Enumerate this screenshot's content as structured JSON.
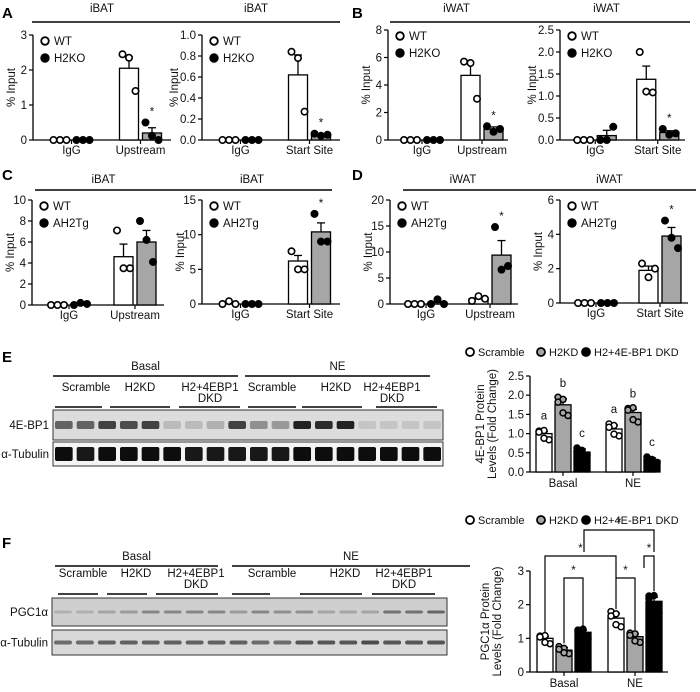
{
  "figure": {
    "panels": [
      "A",
      "B",
      "C",
      "D",
      "E",
      "F"
    ]
  },
  "chart_data": [
    {
      "id": "A1",
      "panel": "A",
      "type": "bar",
      "title": "iBAT",
      "ylabel": "% Input",
      "ylim": [
        0,
        3
      ],
      "yticks": [
        "0",
        "1",
        "2",
        "3"
      ],
      "categories": [
        "IgG",
        "Upstream"
      ],
      "legend": [
        "WT",
        "H2KO"
      ],
      "series": [
        {
          "name": "WT",
          "values": [
            0.0,
            2.05
          ],
          "sem": [
            0,
            0.32
          ],
          "points": [
            [
              0,
              0,
              0
            ],
            [
              2.45,
              2.35,
              1.4
            ]
          ]
        },
        {
          "name": "H2KO",
          "values": [
            0.0,
            0.2
          ],
          "sem": [
            0,
            0.15
          ],
          "points": [
            [
              0,
              0,
              0
            ],
            [
              0.5,
              0.12,
              0.0
            ]
          ]
        }
      ],
      "significance": [
        {
          "category": "Upstream",
          "series": "H2KO",
          "mark": "*"
        }
      ]
    },
    {
      "id": "A2",
      "panel": "A",
      "type": "bar",
      "title": "iBAT",
      "ylabel": "% Input",
      "ylim": [
        0,
        1.0
      ],
      "yticks": [
        "0.0",
        "0.2",
        "0.4",
        "0.6",
        "0.8",
        "1.0"
      ],
      "categories": [
        "IgG",
        "Start Site"
      ],
      "legend": [
        "WT",
        "H2KO"
      ],
      "series": [
        {
          "name": "WT",
          "values": [
            0.0,
            0.62
          ],
          "sem": [
            0,
            0.19
          ],
          "points": [
            [
              0,
              0,
              0
            ],
            [
              0.84,
              0.78,
              0.27
            ]
          ]
        },
        {
          "name": "H2KO",
          "values": [
            0.0,
            0.05
          ],
          "sem": [
            0,
            0.01
          ],
          "points": [
            [
              0,
              0,
              0
            ],
            [
              0.06,
              0.04,
              0.05
            ]
          ]
        }
      ],
      "significance": [
        {
          "category": "Start Site",
          "series": "H2KO",
          "mark": "*"
        }
      ]
    },
    {
      "id": "B1",
      "panel": "B",
      "type": "bar",
      "title": "iWAT",
      "ylabel": "% Input",
      "ylim": [
        0,
        8
      ],
      "yticks": [
        "0",
        "2",
        "4",
        "6",
        "8"
      ],
      "categories": [
        "IgG",
        "Upstream"
      ],
      "legend": [
        "WT",
        "H2KO"
      ],
      "series": [
        {
          "name": "WT",
          "values": [
            0.0,
            4.7
          ],
          "sem": [
            0,
            0.9
          ],
          "points": [
            [
              0,
              0,
              0
            ],
            [
              5.7,
              5.6,
              3.0
            ]
          ]
        },
        {
          "name": "H2KO",
          "values": [
            0.0,
            0.8
          ],
          "sem": [
            0,
            0.15
          ],
          "points": [
            [
              0,
              0,
              0
            ],
            [
              1.0,
              0.6,
              0.8
            ]
          ]
        }
      ],
      "significance": [
        {
          "category": "Upstream",
          "series": "H2KO",
          "mark": "*"
        }
      ]
    },
    {
      "id": "B2",
      "panel": "B",
      "type": "bar",
      "title": "iWAT",
      "ylabel": "% Input",
      "ylim": [
        0,
        2.5
      ],
      "yticks": [
        "0.0",
        "0.5",
        "1.0",
        "1.5",
        "2.0",
        "2.5"
      ],
      "categories": [
        "IgG",
        "Start Site"
      ],
      "legend": [
        "WT",
        "H2KO"
      ],
      "series": [
        {
          "name": "WT",
          "values": [
            0.0,
            1.38
          ],
          "sem": [
            0,
            0.3
          ],
          "points": [
            [
              0,
              0,
              0
            ],
            [
              2.0,
              1.1,
              1.08
            ]
          ]
        },
        {
          "name": "H2KO",
          "values": [
            0.1,
            0.17
          ],
          "sem": [
            0.12,
            0.04
          ],
          "points": [
            [
              0,
              0,
              0.3
            ],
            [
              0.25,
              0.12,
              0.15
            ]
          ]
        }
      ],
      "significance": [
        {
          "category": "Start Site",
          "series": "H2KO",
          "mark": "*"
        }
      ]
    },
    {
      "id": "C1",
      "panel": "C",
      "type": "bar",
      "title": "iBAT",
      "ylabel": "% Input",
      "ylim": [
        0,
        10
      ],
      "yticks": [
        "0",
        "2",
        "4",
        "6",
        "8",
        "10"
      ],
      "categories": [
        "IgG",
        "Upstream"
      ],
      "legend": [
        "WT",
        "AH2Tg"
      ],
      "series": [
        {
          "name": "WT",
          "values": [
            0.0,
            4.6
          ],
          "sem": [
            0,
            1.2
          ],
          "points": [
            [
              0,
              0,
              0
            ],
            [
              7.1,
              3.5,
              3.5
            ]
          ]
        },
        {
          "name": "AH2Tg",
          "values": [
            0.1,
            6.0
          ],
          "sem": [
            0.05,
            1.1
          ],
          "points": [
            [
              0,
              0.2,
              0.1
            ],
            [
              8.0,
              6.2,
              4.1
            ]
          ]
        }
      ],
      "significance": []
    },
    {
      "id": "C2",
      "panel": "C",
      "type": "bar",
      "title": "iBAT",
      "ylabel": "% Input",
      "ylim": [
        0,
        15
      ],
      "yticks": [
        "0",
        "5",
        "10",
        "15"
      ],
      "categories": [
        "IgG",
        "Start Site"
      ],
      "legend": [
        "WT",
        "AH2Tg"
      ],
      "series": [
        {
          "name": "WT",
          "values": [
            0.1,
            6.2
          ],
          "sem": [
            0.05,
            0.8
          ],
          "points": [
            [
              0,
              0.4,
              0
            ],
            [
              7.6,
              5.0,
              5.0
            ]
          ]
        },
        {
          "name": "AH2Tg",
          "values": [
            0.0,
            10.4
          ],
          "sem": [
            0,
            1.3
          ],
          "points": [
            [
              0,
              0,
              0
            ],
            [
              13.0,
              9.0,
              9.0
            ]
          ]
        }
      ],
      "significance": [
        {
          "category": "Start Site",
          "series": "AH2Tg",
          "mark": "*"
        }
      ]
    },
    {
      "id": "D1",
      "panel": "D",
      "type": "bar",
      "title": "iWAT",
      "ylabel": "% Input",
      "ylim": [
        0,
        20
      ],
      "yticks": [
        "0",
        "5",
        "10",
        "15",
        "20"
      ],
      "categories": [
        "IgG",
        "Upstream"
      ],
      "legend": [
        "WT",
        "AH2Tg"
      ],
      "series": [
        {
          "name": "WT",
          "values": [
            0.0,
            1.0
          ],
          "sem": [
            0,
            0.3
          ],
          "points": [
            [
              0,
              0,
              0
            ],
            [
              0.6,
              1.5,
              1.0
            ]
          ]
        },
        {
          "name": "AH2Tg",
          "values": [
            0.3,
            9.4
          ],
          "sem": [
            0.2,
            2.8
          ],
          "points": [
            [
              0,
              0.9,
              0
            ],
            [
              14.8,
              6.6,
              7.3
            ]
          ]
        }
      ],
      "significance": [
        {
          "category": "Upstream",
          "series": "AH2Tg",
          "mark": "*"
        }
      ]
    },
    {
      "id": "D2",
      "panel": "D",
      "type": "bar",
      "title": "iWAT",
      "ylabel": "% Input",
      "ylim": [
        0,
        6
      ],
      "yticks": [
        "0",
        "2",
        "4",
        "6"
      ],
      "categories": [
        "IgG",
        "Start Site"
      ],
      "legend": [
        "WT",
        "AH2Tg"
      ],
      "series": [
        {
          "name": "WT",
          "values": [
            0.0,
            1.9
          ],
          "sem": [
            0,
            0.25
          ],
          "points": [
            [
              0,
              0,
              0
            ],
            [
              2.3,
              1.5,
              2.0
            ]
          ]
        },
        {
          "name": "AH2Tg",
          "values": [
            0.0,
            3.9
          ],
          "sem": [
            0,
            0.5
          ],
          "points": [
            [
              0,
              0,
              0
            ],
            [
              4.8,
              3.8,
              3.2
            ]
          ]
        }
      ],
      "significance": [
        {
          "category": "Start Site",
          "series": "AH2Tg",
          "mark": "*"
        }
      ]
    },
    {
      "id": "E-quant",
      "panel": "E",
      "type": "bar",
      "title": "",
      "ylabel": "4E-BP1 Protein Levels (Fold Change)",
      "ylim": [
        0,
        2.5
      ],
      "yticks": [
        "0.0",
        "0.5",
        "1.0",
        "1.5",
        "2.0",
        "2.5"
      ],
      "categories": [
        "Basal",
        "NE"
      ],
      "legend": [
        "Scramble",
        "H2KD",
        "H2+4E-BP1 DKD"
      ],
      "series": [
        {
          "name": "Scramble",
          "values": [
            1.0,
            1.12
          ],
          "sem": [
            0.05,
            0.1
          ],
          "letters": [
            "a",
            "a"
          ]
        },
        {
          "name": "H2KD",
          "values": [
            1.75,
            1.55
          ],
          "sem": [
            0.15,
            0.08
          ],
          "letters": [
            "b",
            "b"
          ]
        },
        {
          "name": "H2+4E-BP1 DKD",
          "values": [
            0.52,
            0.3
          ],
          "sem": [
            0.08,
            0.07
          ],
          "letters": [
            "c",
            "c"
          ]
        }
      ]
    },
    {
      "id": "F-quant",
      "panel": "F",
      "type": "bar",
      "title": "",
      "ylabel": "PGC1α Protein Levels (Fold Change)",
      "ylim": [
        0,
        3
      ],
      "yticks": [
        "0",
        "1",
        "2",
        "3"
      ],
      "categories": [
        "Basal",
        "NE"
      ],
      "legend": [
        "Scramble",
        "H2KD",
        "H2+4E-BP1 DKD"
      ],
      "series": [
        {
          "name": "Scramble",
          "values": [
            1.0,
            1.6
          ],
          "sem": [
            0.05,
            0.15
          ]
        },
        {
          "name": "H2KD",
          "values": [
            0.65,
            1.05
          ],
          "sem": [
            0.08,
            0.08
          ]
        },
        {
          "name": "H2+4E-BP1 DKD",
          "values": [
            1.18,
            2.1
          ],
          "sem": [
            0.05,
            0.12
          ]
        }
      ],
      "significance": [
        {
          "from": "Basal H2KD",
          "to": "Basal DKD",
          "mark": "*"
        },
        {
          "from": "NE Scramble",
          "to": "NE H2KD",
          "mark": "*"
        },
        {
          "from": "NE H2KD",
          "to": "NE DKD",
          "mark": "*"
        },
        {
          "from": "Basal Scramble",
          "to": "NE Scramble",
          "mark": "*"
        },
        {
          "from": "Basal DKD",
          "to": "NE DKD",
          "mark": "*"
        }
      ]
    }
  ],
  "blots": {
    "E": {
      "conditions": [
        "Basal",
        "NE"
      ],
      "groups": [
        "Scramble",
        "H2KD",
        "H2+4EBP1",
        "DKD"
      ],
      "rows": [
        "4E-BP1",
        "α-Tubulin"
      ]
    },
    "F": {
      "conditions": [
        "Basal",
        "NE"
      ],
      "groups": [
        "Scramble",
        "H2KD",
        "H2+4EBP1",
        "DKD"
      ],
      "rows": [
        "PGC1α",
        "α-Tubulin"
      ]
    }
  }
}
